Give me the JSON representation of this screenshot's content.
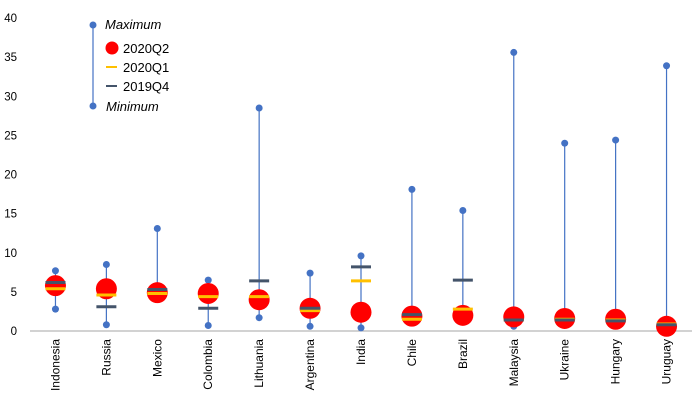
{
  "chart_data": {
    "type": "scatter",
    "categories": [
      "Indonesia",
      "Russia",
      "Mexico",
      "Colombia",
      "Lithuania",
      "Argentina",
      "India",
      "Chile",
      "Brazil",
      "Malaysia",
      "Ukraine",
      "Hungary",
      "Uruguay"
    ],
    "ylim": [
      0,
      40
    ],
    "yticks": [
      0,
      5,
      10,
      15,
      20,
      25,
      30,
      35,
      40
    ],
    "grid": false,
    "legend_position": "top-left",
    "legend": {
      "maximum": "Maximum",
      "q2": "2020Q2",
      "q1": "2020Q1",
      "q4": "2019Q4",
      "minimum": "Minimum"
    },
    "series": [
      {
        "name": "Maximum",
        "values": [
          7.7,
          8.5,
          13.1,
          6.5,
          28.5,
          7.4,
          9.6,
          18.1,
          15.4,
          35.6,
          24.0,
          24.4,
          33.9
        ]
      },
      {
        "name": "Minimum",
        "values": [
          2.8,
          0.8,
          4.6,
          0.7,
          1.7,
          0.6,
          0.4,
          1.1,
          2.0,
          0.6,
          1.2,
          1.2,
          0.4
        ]
      },
      {
        "name": "2020Q2",
        "values": [
          5.8,
          5.4,
          4.9,
          4.8,
          4.0,
          2.9,
          2.4,
          1.9,
          2.0,
          1.8,
          1.6,
          1.5,
          0.6
        ]
      },
      {
        "name": "2020Q1",
        "values": [
          5.4,
          4.6,
          4.8,
          4.4,
          4.4,
          2.6,
          6.4,
          1.5,
          2.8,
          1.4,
          1.5,
          1.4,
          0.9
        ]
      },
      {
        "name": "2019Q4",
        "values": [
          6.2,
          3.1,
          5.3,
          2.9,
          6.4,
          2.9,
          8.2,
          2.1,
          6.5,
          1.4,
          1.4,
          1.3,
          0.8
        ]
      }
    ],
    "colors": {
      "max_min": "#4472C4",
      "line": "#4472C4",
      "q2": "#FF0000",
      "q1": "#FFC000",
      "q4": "#44546A"
    }
  }
}
